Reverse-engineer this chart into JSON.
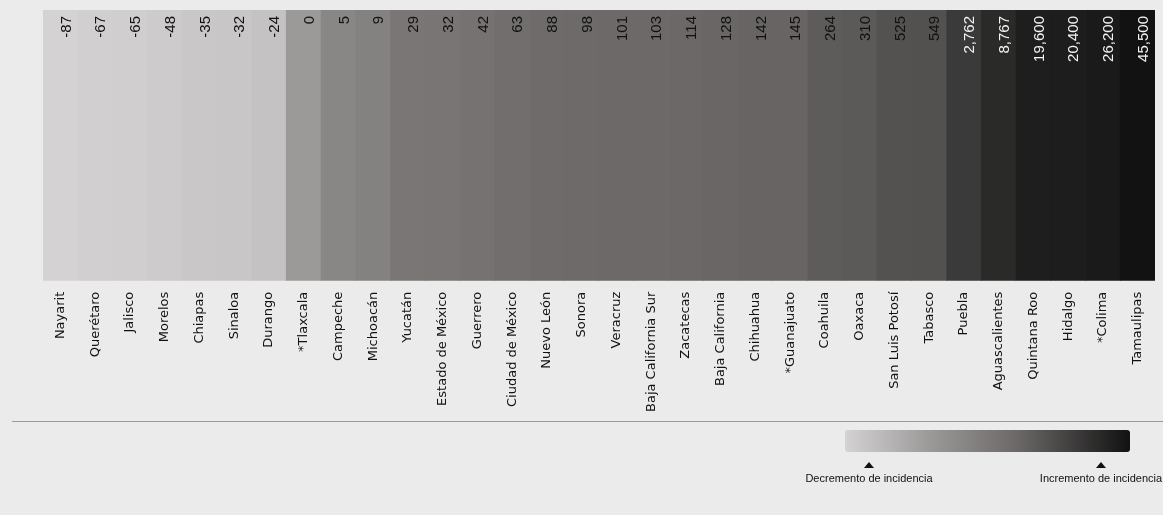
{
  "chart_data": {
    "type": "heatmap",
    "categories": [
      "Nayarit",
      "Querétaro",
      "Jalisco",
      "Morelos",
      "Chiapas",
      "Sinaloa",
      "Durango",
      "*Tlaxcala",
      "Campeche",
      "Michoacán",
      "Yucatán",
      "Estado de México",
      "Guerrero",
      "Ciudad de México",
      "Nuevo León",
      "Sonora",
      "Veracruz",
      "Baja California Sur",
      "Zacatecas",
      "Baja California",
      "Chihuahua",
      "*Guanajuato",
      "Coahuila",
      "Oaxaca",
      "San Luis Potosí",
      "Tabasco",
      "Puebla",
      "Aguascalientes",
      "Quintana Roo",
      "Hidalgo",
      "*Colima",
      "Tamaulipas"
    ],
    "y_categories": [
      null
    ],
    "cells": [
      [
        -87,
        -67,
        -65,
        -48,
        -35,
        -32,
        -24,
        0,
        5,
        9,
        29,
        32,
        42,
        63,
        88,
        98,
        101,
        103,
        114,
        128,
        142,
        145,
        264,
        310,
        525,
        549,
        2762,
        8767,
        19600,
        20400,
        26200,
        45500
      ]
    ],
    "cell_labels": [
      [
        "-87",
        "-67",
        "-65",
        "-48",
        "-35",
        "-32",
        "-24",
        "0",
        "5",
        "9",
        "29",
        "32",
        "42",
        "63",
        "88",
        "98",
        "101",
        "103",
        "114",
        "128",
        "142",
        "145",
        "264",
        "310",
        "525",
        "549",
        "2,762",
        "8,767",
        "19,600",
        "20,400",
        "26,200",
        "45,500"
      ]
    ],
    "annotations": [
      "Decremento de incidencia",
      "Incremento de incidencia"
    ]
  }
}
